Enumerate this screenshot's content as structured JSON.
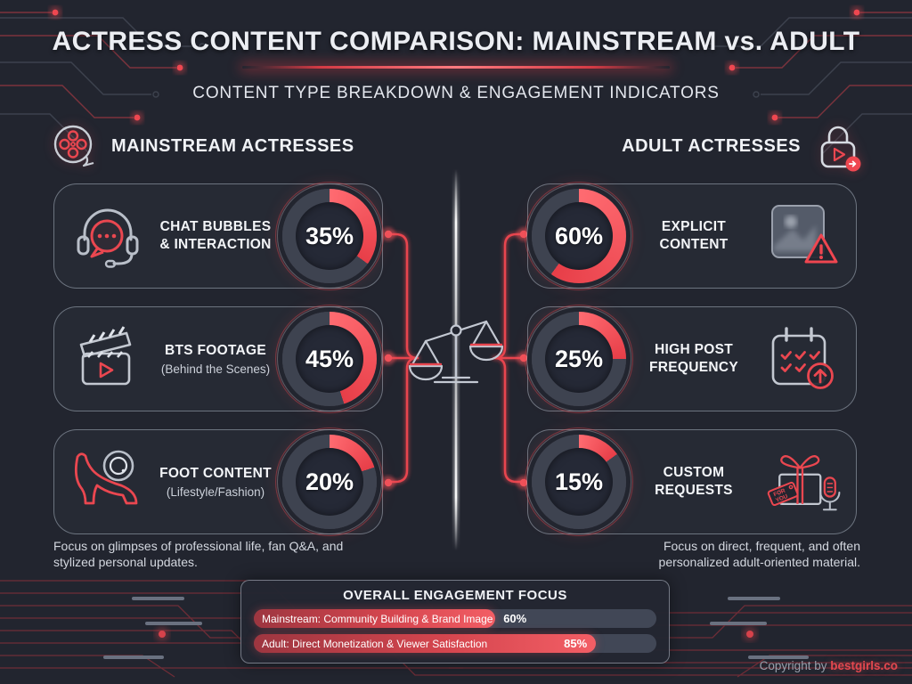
{
  "header": {
    "title": "ACTRESS CONTENT COMPARISON: MAINSTREAM vs. ADULT",
    "subtitle": "CONTENT TYPE BREAKDOWN & ENGAGEMENT INDICATORS"
  },
  "mainstream": {
    "title": "MAINSTREAM ACTRESSES",
    "icon": "film-reel-icon",
    "footnote": "Focus on glimpses of professional life, fan Q&A, and stylized personal updates.",
    "cards": [
      {
        "icon": "chat-headset-icon",
        "label": "CHAT BUBBLES\n& INTERACTION",
        "sublabel": "",
        "percent": "35%",
        "value": 35
      },
      {
        "icon": "clapperboard-icon",
        "label": "BTS FOOTAGE",
        "sublabel": "(Behind the Scenes)",
        "percent": "45%",
        "value": 45
      },
      {
        "icon": "high-heel-camera-icon",
        "label": "FOOT CONTENT",
        "sublabel": "(Lifestyle/Fashion)",
        "percent": "20%",
        "value": 20
      }
    ]
  },
  "adult": {
    "title": "ADULT ACTRESSES",
    "icon": "lock-play-icon",
    "footnote": "Focus on direct, frequent, and often personalized adult-oriented material.",
    "cards": [
      {
        "icon": "explicit-image-warning-icon",
        "label": "EXPLICIT CONTENT",
        "sublabel": "",
        "percent": "60%",
        "value": 60
      },
      {
        "icon": "calendar-frequency-icon",
        "label": "HIGH POST\nFREQUENCY",
        "sublabel": "",
        "percent": "25%",
        "value": 25
      },
      {
        "icon": "gift-custom-request-icon",
        "label": "CUSTOM\nREQUESTS",
        "sublabel": "",
        "percent": "15%",
        "value": 15
      }
    ]
  },
  "engagement": {
    "title": "OVERALL ENGAGEMENT FOCUS",
    "bars": [
      {
        "label": "Mainstream: Community Building & Brand Image",
        "percent": "60%",
        "value": 60
      },
      {
        "label": "Adult: Direct Monetization & Viewer Satisfaction",
        "percent": "85%",
        "value": 85
      }
    ]
  },
  "footer": {
    "copyright_prefix": "Copyright by ",
    "brand": "bestgirls.co"
  },
  "colors": {
    "background": "#22252f",
    "accent_red": "#ee4850",
    "ring_track": "#3e4350",
    "text_light": "#eceef3"
  },
  "chart_data": [
    {
      "type": "pie",
      "title": "Mainstream actresses content type breakdown",
      "unit": "%",
      "items": [
        {
          "label": "Chat Bubbles & Interaction",
          "value": 35
        },
        {
          "label": "BTS Footage (Behind the Scenes)",
          "value": 45
        },
        {
          "label": "Foot Content (Lifestyle/Fashion)",
          "value": 20
        }
      ]
    },
    {
      "type": "pie",
      "title": "Adult actresses content type breakdown",
      "unit": "%",
      "items": [
        {
          "label": "Explicit Content",
          "value": 60
        },
        {
          "label": "High Post Frequency",
          "value": 25
        },
        {
          "label": "Custom Requests",
          "value": 15
        }
      ]
    },
    {
      "type": "bar",
      "title": "OVERALL ENGAGEMENT FOCUS",
      "categories": [
        "Mainstream: Community Building & Brand Image",
        "Adult: Direct Monetization & Viewer Satisfaction"
      ],
      "values": [
        60,
        85
      ],
      "unit": "%",
      "xlim": [
        0,
        100
      ],
      "orientation": "horizontal"
    }
  ]
}
